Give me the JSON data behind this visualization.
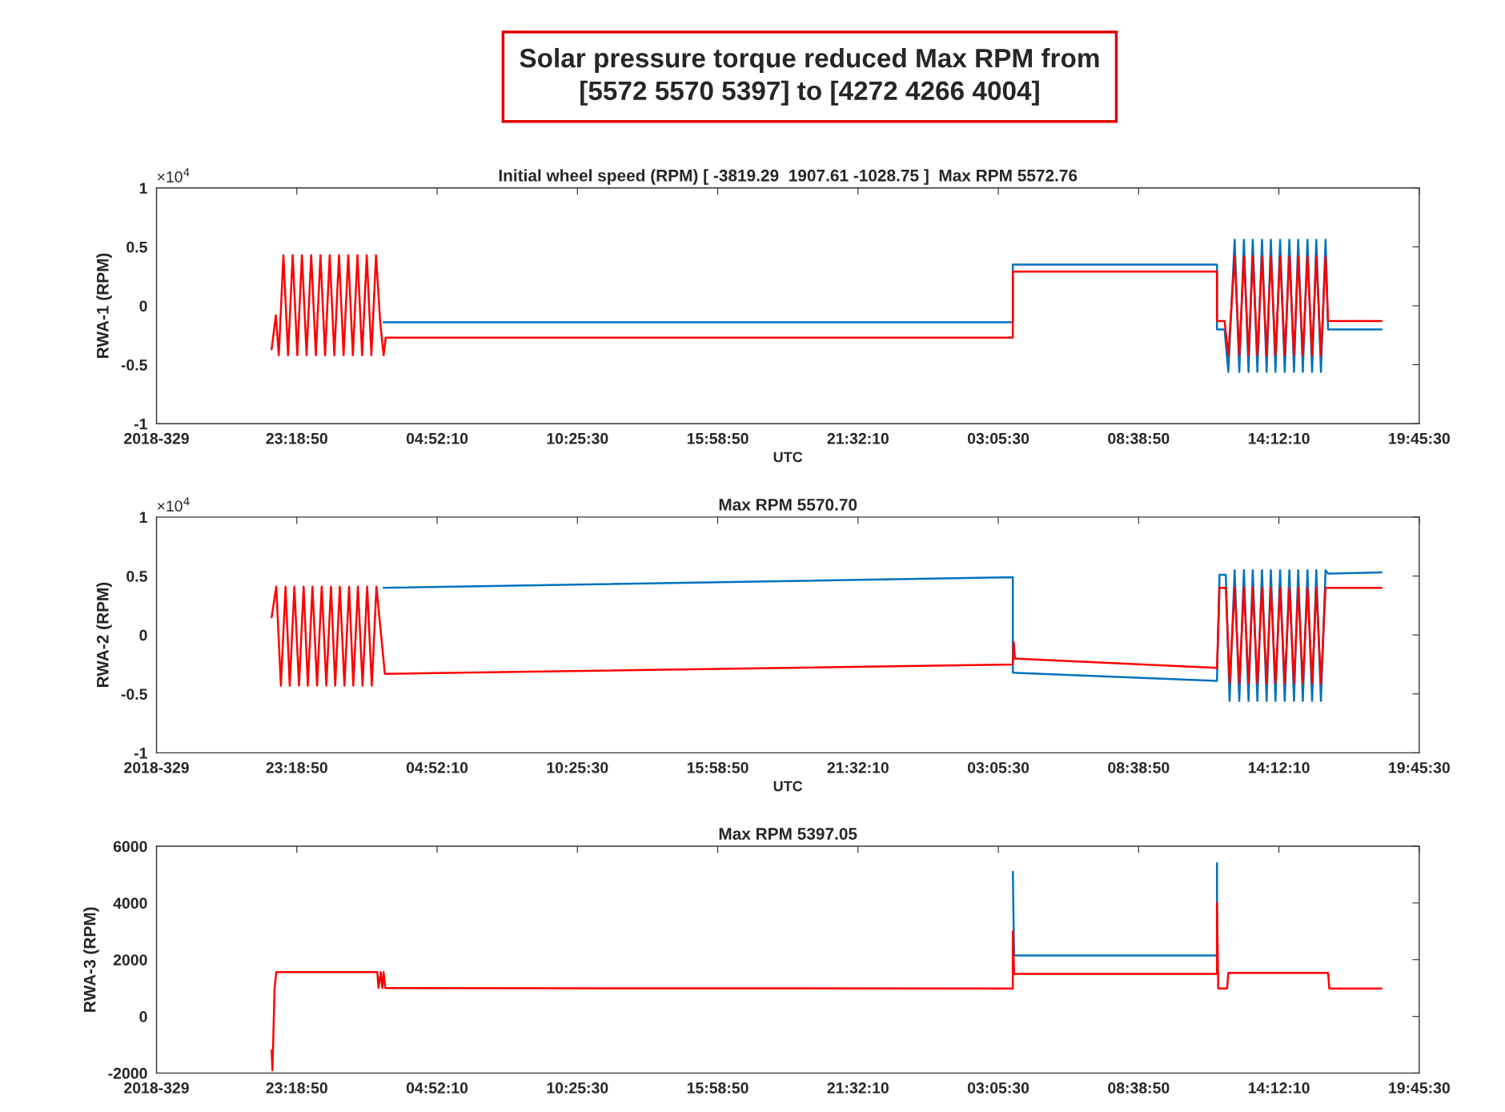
{
  "chart_data": [
    {
      "type": "other",
      "title": "Solar pressure torque reduced Max RPM from\n[5572 5570 5397] to [4272 4266 4004]"
    },
    {
      "type": "line",
      "title": "Initial wheel speed (RPM) [ -3819.29  1907.61 -1028.75 ]  Max RPM 5572.76",
      "xlabel": "UTC",
      "ylabel": "RWA-1 (RPM)",
      "annotations": [
        "×10$^{4}$"
      ],
      "xlim": [
        "2018-11-25T17:45:30",
        "2018-11-27T19:45:30"
      ],
      "xticks": [
        {
          "value": "2018-11-25T17:45:30",
          "label": "2018-329"
        },
        {
          "value": "2018-11-25T23:18:50",
          "label": "23:18:50"
        },
        {
          "value": "2018-11-26T04:52:10",
          "label": "04:52:10"
        },
        {
          "value": "2018-11-26T10:25:30",
          "label": "10:25:30"
        },
        {
          "value": "2018-11-26T15:58:50",
          "label": "15:58:50"
        },
        {
          "value": "2018-11-26T21:32:10",
          "label": "21:32:10"
        },
        {
          "value": "2018-11-27T03:05:30",
          "label": "03:05:30"
        },
        {
          "value": "2018-11-27T08:38:50",
          "label": "08:38:50"
        },
        {
          "value": "2018-11-27T14:12:10",
          "label": "14:12:10"
        },
        {
          "value": "2018-11-27T19:45:30",
          "label": "19:45:30"
        }
      ],
      "ylim": [
        -1,
        1
      ],
      "yticks": [
        -1,
        -0.5,
        0,
        0.5,
        1
      ],
      "grid": false,
      "series": [
        {
          "color": "#0072bd",
          "x": [
            "2018-11-26T02:45",
            "2018-11-27T03:40",
            "2018-11-27T03:40",
            "2018-11-27T11:45",
            "2018-11-27T11:45",
            "2018-11-27T12:03",
            "2018-11-27T12:12",
            "2018-11-27T12:27",
            "2018-11-27T12:38",
            "2018-11-27T12:49",
            "2018-11-27T13:00",
            "2018-11-27T13:10",
            "2018-11-27T13:21",
            "2018-11-27T13:32",
            "2018-11-27T13:43",
            "2018-11-27T13:53",
            "2018-11-27T14:04",
            "2018-11-27T14:15",
            "2018-11-27T14:26",
            "2018-11-27T14:37",
            "2018-11-27T14:48",
            "2018-11-27T14:58",
            "2018-11-27T15:09",
            "2018-11-27T15:20",
            "2018-11-27T15:31",
            "2018-11-27T15:41",
            "2018-11-27T15:52",
            "2018-11-27T16:03",
            "2018-11-27T16:09",
            "2018-11-27T18:16"
          ],
          "values": [
            -0.14,
            -0.14,
            0.35,
            0.35,
            -0.2,
            -0.2,
            -0.56,
            0.56,
            -0.56,
            0.56,
            -0.56,
            0.56,
            -0.56,
            0.56,
            -0.56,
            0.56,
            -0.56,
            0.56,
            -0.56,
            0.56,
            -0.56,
            0.56,
            -0.56,
            0.56,
            -0.56,
            0.56,
            -0.56,
            0.56,
            -0.2,
            -0.2
          ]
        },
        {
          "color": "#ff0000",
          "x": [
            "2018-11-25T22:19",
            "2018-11-25T22:29",
            "2018-11-25T22:36",
            "2018-11-25T22:47",
            "2018-11-25T22:58",
            "2018-11-25T23:09",
            "2018-11-25T23:20",
            "2018-11-25T23:31",
            "2018-11-25T23:42",
            "2018-11-25T23:53",
            "2018-11-26T00:04",
            "2018-11-26T00:15",
            "2018-11-26T00:26",
            "2018-11-26T00:37",
            "2018-11-26T00:48",
            "2018-11-26T00:59",
            "2018-11-26T01:10",
            "2018-11-26T01:21",
            "2018-11-26T01:32",
            "2018-11-26T01:43",
            "2018-11-26T01:54",
            "2018-11-26T02:05",
            "2018-11-26T02:16",
            "2018-11-26T02:27",
            "2018-11-26T02:37",
            "2018-11-26T02:45",
            "2018-11-26T02:50",
            "2018-11-27T03:40",
            "2018-11-27T03:40",
            "2018-11-27T11:45",
            "2018-11-27T11:45",
            "2018-11-27T12:03",
            "2018-11-27T12:12",
            "2018-11-27T12:27",
            "2018-11-27T12:38",
            "2018-11-27T12:49",
            "2018-11-27T13:00",
            "2018-11-27T13:10",
            "2018-11-27T13:21",
            "2018-11-27T13:32",
            "2018-11-27T13:43",
            "2018-11-27T13:53",
            "2018-11-27T14:04",
            "2018-11-27T14:15",
            "2018-11-27T14:26",
            "2018-11-27T14:37",
            "2018-11-27T14:48",
            "2018-11-27T14:58",
            "2018-11-27T15:09",
            "2018-11-27T15:20",
            "2018-11-27T15:31",
            "2018-11-27T15:41",
            "2018-11-27T15:52",
            "2018-11-27T16:03",
            "2018-11-27T16:09",
            "2018-11-27T18:16"
          ],
          "values": [
            -0.37,
            -0.08,
            -0.42,
            0.43,
            -0.42,
            0.43,
            -0.42,
            0.43,
            -0.42,
            0.43,
            -0.42,
            0.43,
            -0.42,
            0.43,
            -0.42,
            0.43,
            -0.42,
            0.43,
            -0.42,
            0.43,
            -0.42,
            0.43,
            -0.42,
            0.43,
            -0.14,
            -0.42,
            -0.27,
            -0.27,
            0.29,
            0.29,
            -0.13,
            -0.13,
            -0.42,
            0.42,
            -0.42,
            0.42,
            -0.42,
            0.42,
            -0.42,
            0.42,
            -0.42,
            0.42,
            -0.42,
            0.42,
            -0.42,
            0.42,
            -0.42,
            0.42,
            -0.42,
            0.42,
            -0.42,
            0.42,
            -0.42,
            0.42,
            -0.13,
            -0.13
          ]
        }
      ]
    },
    {
      "type": "line",
      "title": "Max RPM 5570.70",
      "xlabel": "UTC",
      "ylabel": "RWA-2 (RPM)",
      "annotations": [
        "×10$^{4}$"
      ],
      "xlim": [
        "2018-11-25T17:45:30",
        "2018-11-27T19:45:30"
      ],
      "xticks": [
        {
          "value": "2018-11-25T17:45:30",
          "label": "2018-329"
        },
        {
          "value": "2018-11-25T23:18:50",
          "label": "23:18:50"
        },
        {
          "value": "2018-11-26T04:52:10",
          "label": "04:52:10"
        },
        {
          "value": "2018-11-26T10:25:30",
          "label": "10:25:30"
        },
        {
          "value": "2018-11-26T15:58:50",
          "label": "15:58:50"
        },
        {
          "value": "2018-11-26T21:32:10",
          "label": "21:32:10"
        },
        {
          "value": "2018-11-27T03:05:30",
          "label": "03:05:30"
        },
        {
          "value": "2018-11-27T08:38:50",
          "label": "08:38:50"
        },
        {
          "value": "2018-11-27T14:12:10",
          "label": "14:12:10"
        },
        {
          "value": "2018-11-27T19:45:30",
          "label": "19:45:30"
        }
      ],
      "ylim": [
        -1,
        1
      ],
      "yticks": [
        -1,
        -0.5,
        0,
        0.5,
        1
      ],
      "grid": false,
      "series": [
        {
          "color": "#0072bd",
          "x": [
            "2018-11-26T02:45",
            "2018-11-27T03:40",
            "2018-11-27T03:40",
            "2018-11-27T11:45",
            "2018-11-27T11:51",
            "2018-11-27T12:06",
            "2018-11-27T12:15",
            "2018-11-27T12:27",
            "2018-11-27T12:38",
            "2018-11-27T12:49",
            "2018-11-27T13:00",
            "2018-11-27T13:10",
            "2018-11-27T13:21",
            "2018-11-27T13:32",
            "2018-11-27T13:43",
            "2018-11-27T13:53",
            "2018-11-27T14:04",
            "2018-11-27T14:15",
            "2018-11-27T14:26",
            "2018-11-27T14:37",
            "2018-11-27T14:48",
            "2018-11-27T14:58",
            "2018-11-27T15:09",
            "2018-11-27T15:20",
            "2018-11-27T15:31",
            "2018-11-27T15:41",
            "2018-11-27T15:52",
            "2018-11-27T16:03",
            "2018-11-27T16:09",
            "2018-11-27T18:16"
          ],
          "values": [
            0.4,
            0.49,
            -0.32,
            -0.39,
            0.51,
            0.51,
            -0.56,
            0.55,
            -0.56,
            0.55,
            -0.56,
            0.55,
            -0.56,
            0.55,
            -0.56,
            0.55,
            -0.56,
            0.55,
            -0.56,
            0.55,
            -0.56,
            0.55,
            -0.56,
            0.55,
            -0.56,
            0.55,
            -0.56,
            0.55,
            0.52,
            0.53
          ]
        },
        {
          "color": "#ff0000",
          "x": [
            "2018-11-25T22:19",
            "2018-11-25T22:30",
            "2018-11-25T22:41",
            "2018-11-25T22:52",
            "2018-11-25T23:02",
            "2018-11-25T23:13",
            "2018-11-25T23:24",
            "2018-11-25T23:35",
            "2018-11-25T23:45",
            "2018-11-25T23:56",
            "2018-11-26T00:07",
            "2018-11-26T00:18",
            "2018-11-26T00:29",
            "2018-11-26T00:40",
            "2018-11-26T00:50",
            "2018-11-26T01:01",
            "2018-11-26T01:12",
            "2018-11-26T01:23",
            "2018-11-26T01:33",
            "2018-11-26T01:44",
            "2018-11-26T01:55",
            "2018-11-26T02:06",
            "2018-11-26T02:17",
            "2018-11-26T02:28",
            "2018-11-26T02:48",
            "2018-11-27T03:40",
            "2018-11-27T03:42",
            "2018-11-27T03:45",
            "2018-11-27T11:45",
            "2018-11-27T11:51",
            "2018-11-27T12:06",
            "2018-11-27T12:15",
            "2018-11-27T12:27",
            "2018-11-27T12:38",
            "2018-11-27T12:49",
            "2018-11-27T13:00",
            "2018-11-27T13:10",
            "2018-11-27T13:21",
            "2018-11-27T13:32",
            "2018-11-27T13:43",
            "2018-11-27T13:53",
            "2018-11-27T14:04",
            "2018-11-27T14:15",
            "2018-11-27T14:26",
            "2018-11-27T14:37",
            "2018-11-27T14:48",
            "2018-11-27T14:58",
            "2018-11-27T15:09",
            "2018-11-27T15:20",
            "2018-11-27T15:31",
            "2018-11-27T15:41",
            "2018-11-27T15:52",
            "2018-11-27T16:03",
            "2018-11-27T16:09",
            "2018-11-27T18:16"
          ],
          "values": [
            0.15,
            0.41,
            -0.43,
            0.41,
            -0.43,
            0.41,
            -0.43,
            0.41,
            -0.43,
            0.41,
            -0.43,
            0.41,
            -0.43,
            0.41,
            -0.43,
            0.41,
            -0.43,
            0.41,
            -0.43,
            0.41,
            -0.43,
            0.41,
            -0.43,
            0.41,
            -0.33,
            -0.25,
            -0.06,
            -0.2,
            -0.28,
            0.4,
            0.4,
            -0.41,
            0.4,
            -0.41,
            0.4,
            -0.41,
            0.4,
            -0.41,
            0.4,
            -0.41,
            0.4,
            -0.41,
            0.4,
            -0.41,
            0.4,
            -0.41,
            0.4,
            -0.41,
            0.4,
            -0.41,
            0.4,
            -0.41,
            0.4,
            0.4,
            0.4
          ]
        }
      ]
    },
    {
      "type": "line",
      "title": "Max RPM 5397.05",
      "ylabel": "RWA-3 (RPM)",
      "xlim": [
        "2018-11-25T17:45:30",
        "2018-11-27T19:45:30"
      ],
      "xticks": [
        {
          "value": "2018-11-25T17:45:30",
          "label": "2018-329"
        },
        {
          "value": "2018-11-25T23:18:50",
          "label": "23:18:50"
        },
        {
          "value": "2018-11-26T04:52:10",
          "label": "04:52:10"
        },
        {
          "value": "2018-11-26T10:25:30",
          "label": "10:25:30"
        },
        {
          "value": "2018-11-26T15:58:50",
          "label": "15:58:50"
        },
        {
          "value": "2018-11-26T21:32:10",
          "label": "21:32:10"
        },
        {
          "value": "2018-11-27T03:05:30",
          "label": "03:05:30"
        },
        {
          "value": "2018-11-27T08:38:50",
          "label": "08:38:50"
        },
        {
          "value": "2018-11-27T14:12:10",
          "label": "14:12:10"
        },
        {
          "value": "2018-11-27T19:45:30",
          "label": "19:45:30"
        }
      ],
      "ylim": [
        -2000,
        6000
      ],
      "yticks": [
        -2000,
        0,
        2000,
        4000,
        6000
      ],
      "grid": false,
      "series": [
        {
          "color": "#0072bd",
          "x": [
            "2018-11-27T03:40",
            "2018-11-27T03:43",
            "2018-11-27T11:45",
            "2018-11-27T11:45"
          ],
          "values": [
            5100,
            2150,
            2150,
            5400
          ]
        },
        {
          "color": "#ff0000",
          "x": [
            "2018-11-25T22:19",
            "2018-11-25T22:21",
            "2018-11-25T22:26",
            "2018-11-25T22:30",
            "2018-11-26T02:30",
            "2018-11-26T02:33",
            "2018-11-26T02:38",
            "2018-11-26T02:42",
            "2018-11-26T02:45",
            "2018-11-26T02:49",
            "2018-11-26T02:53",
            "2018-11-27T03:40",
            "2018-11-27T03:40",
            "2018-11-27T03:43",
            "2018-11-27T11:45",
            "2018-11-27T11:45",
            "2018-11-27T11:48",
            "2018-11-27T12:09",
            "2018-11-27T12:12",
            "2018-11-27T16:09",
            "2018-11-27T16:12",
            "2018-11-27T18:16"
          ],
          "values": [
            -1200,
            -1900,
            1000,
            1560,
            1560,
            1000,
            1560,
            1000,
            1560,
            1000,
            1000,
            980,
            3000,
            1500,
            1500,
            4000,
            980,
            980,
            1530,
            1530,
            980,
            980
          ]
        }
      ]
    }
  ]
}
